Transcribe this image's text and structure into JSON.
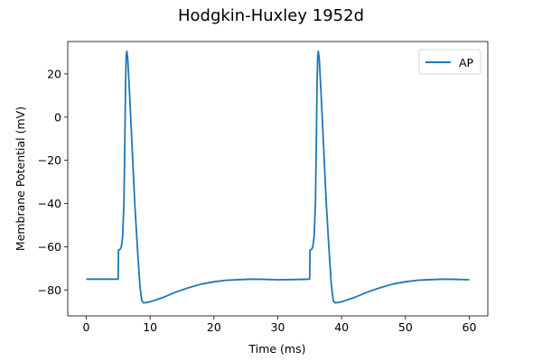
{
  "chart_data": {
    "type": "line",
    "title": "Hodgkin-Huxley 1952d",
    "xlabel": "Time (ms)",
    "ylabel": "Membrane Potential (mV)",
    "xlim": [
      -2.9,
      62.9
    ],
    "ylim": [
      -92,
      35
    ],
    "xticks": [
      0,
      10,
      20,
      30,
      40,
      50,
      60
    ],
    "yticks": [
      -80,
      -60,
      -40,
      -20,
      0,
      20
    ],
    "grid": false,
    "legend_position": "top-right",
    "series": [
      {
        "name": "AP",
        "color": "#1f77b4",
        "points": [
          [
            0,
            -75
          ],
          [
            5.0,
            -75
          ],
          [
            5.05,
            -61.5
          ],
          [
            5.3,
            -61.2
          ],
          [
            5.5,
            -60
          ],
          [
            5.7,
            -55
          ],
          [
            5.9,
            -40
          ],
          [
            6.05,
            -10
          ],
          [
            6.15,
            15
          ],
          [
            6.25,
            28
          ],
          [
            6.35,
            30.5
          ],
          [
            6.5,
            27
          ],
          [
            6.8,
            10
          ],
          [
            7.2,
            -15
          ],
          [
            7.6,
            -40
          ],
          [
            8.0,
            -60
          ],
          [
            8.4,
            -78
          ],
          [
            8.7,
            -85
          ],
          [
            9.0,
            -86
          ],
          [
            10,
            -85.5
          ],
          [
            12,
            -83.5
          ],
          [
            14,
            -81
          ],
          [
            16,
            -79
          ],
          [
            18,
            -77.3
          ],
          [
            20,
            -76.2
          ],
          [
            22,
            -75.5
          ],
          [
            24,
            -75.2
          ],
          [
            26,
            -75
          ],
          [
            28,
            -75.1
          ],
          [
            30,
            -75.3
          ],
          [
            32,
            -75.2
          ],
          [
            35.0,
            -75
          ],
          [
            35.05,
            -61.5
          ],
          [
            35.3,
            -61.2
          ],
          [
            35.5,
            -60
          ],
          [
            35.7,
            -55
          ],
          [
            35.9,
            -40
          ],
          [
            36.05,
            -10
          ],
          [
            36.15,
            15
          ],
          [
            36.25,
            28
          ],
          [
            36.35,
            30.5
          ],
          [
            36.5,
            27
          ],
          [
            36.8,
            10
          ],
          [
            37.2,
            -15
          ],
          [
            37.6,
            -40
          ],
          [
            38.0,
            -60
          ],
          [
            38.4,
            -78
          ],
          [
            38.7,
            -85
          ],
          [
            39.0,
            -86
          ],
          [
            40,
            -85.5
          ],
          [
            42,
            -83.5
          ],
          [
            44,
            -81
          ],
          [
            46,
            -79
          ],
          [
            48,
            -77.3
          ],
          [
            50,
            -76.2
          ],
          [
            52,
            -75.5
          ],
          [
            54,
            -75.2
          ],
          [
            56,
            -75
          ],
          [
            58,
            -75.1
          ],
          [
            60,
            -75.3
          ]
        ]
      }
    ]
  }
}
